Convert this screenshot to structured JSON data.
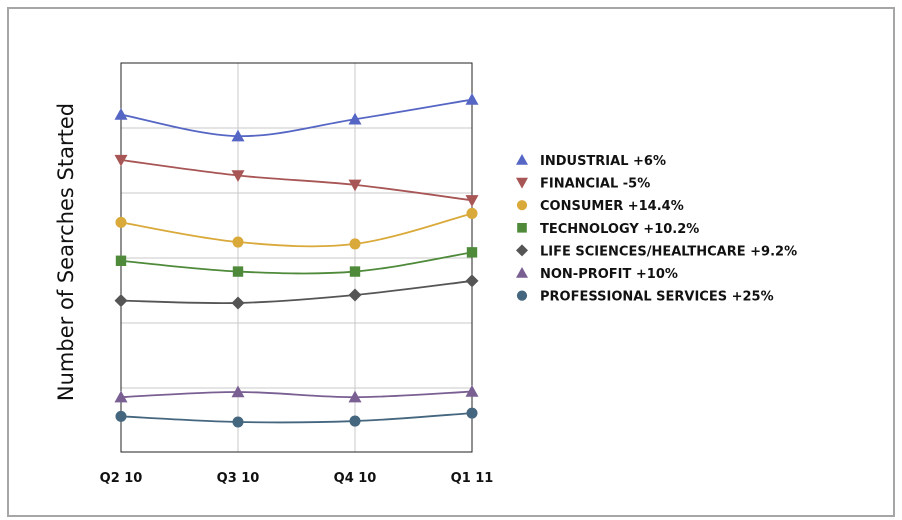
{
  "chart_data": {
    "type": "line",
    "title": "",
    "xlabel": "",
    "ylabel": "Number of Searches Started",
    "categories": [
      "Q2 10",
      "Q3 10",
      "Q4 10",
      "Q1 11"
    ],
    "ylim": [
      0,
      7
    ],
    "y_tick_labels_shown": false,
    "grid": true,
    "legend_position": "right",
    "series": [
      {
        "name": "INDUSTRIAL +6%",
        "values": [
          5.8,
          5.34,
          5.7,
          6.12
        ],
        "color": "#5566c4",
        "marker": "triangle-up"
      },
      {
        "name": "FINANCIAL -5%",
        "values": [
          4.83,
          4.5,
          4.3,
          3.97
        ],
        "color": "#a85555",
        "marker": "triangle-down"
      },
      {
        "name": "CONSUMER +14.4%",
        "values": [
          3.5,
          3.08,
          3.04,
          3.69
        ],
        "color": "#d9a93a",
        "marker": "circle"
      },
      {
        "name": "TECHNOLOGY +10.2%",
        "values": [
          2.68,
          2.45,
          2.45,
          2.86
        ],
        "color": "#4e8a3a",
        "marker": "square"
      },
      {
        "name": "LIFE SCIENCES/HEALTHCARE +9.2%",
        "values": [
          1.83,
          1.78,
          1.95,
          2.25
        ],
        "color": "#555555",
        "marker": "diamond"
      },
      {
        "name": "NON-PROFIT +10%",
        "values": [
          -0.23,
          -0.12,
          -0.23,
          -0.11
        ],
        "color": "#7a5f93",
        "marker": "triangle-up"
      },
      {
        "name": "PROFESSIONAL SERVICES +25%",
        "values": [
          -0.64,
          -0.76,
          -0.74,
          -0.57
        ],
        "color": "#44667f",
        "marker": "circle"
      }
    ]
  }
}
